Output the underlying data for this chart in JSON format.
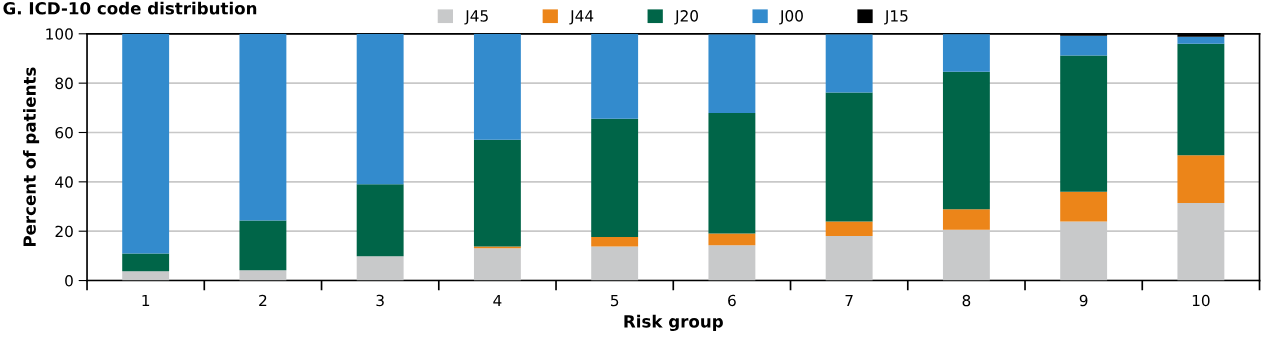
{
  "chart_data": {
    "type": "bar",
    "stacked": true,
    "title": "G. ICD-10 code distribution",
    "xlabel": "Risk group",
    "ylabel": "Percent of patients",
    "categories": [
      "1",
      "2",
      "3",
      "4",
      "5",
      "6",
      "7",
      "8",
      "9",
      "10"
    ],
    "series": [
      {
        "name": "J45",
        "color": "#c8c9ca",
        "values": [
          3.8,
          4.2,
          9.8,
          13.1,
          13.8,
          14.3,
          18.1,
          20.6,
          23.9,
          31.4
        ]
      },
      {
        "name": "J44",
        "color": "#ec8519",
        "values": [
          0,
          0,
          0,
          0.7,
          3.8,
          4.8,
          5.8,
          8.3,
          12.1,
          19.4
        ]
      },
      {
        "name": "J20",
        "color": "#006548",
        "values": [
          7.2,
          20.1,
          29.2,
          43.3,
          48.0,
          48.8,
          52.3,
          55.7,
          55.2,
          45.2
        ]
      },
      {
        "name": "J00",
        "color": "#338bcd",
        "values": [
          89.0,
          75.7,
          61.0,
          42.9,
          34.4,
          31.8,
          23.5,
          15.2,
          8.0,
          2.8
        ]
      },
      {
        "name": "J15",
        "color": "#000000",
        "values": [
          0,
          0,
          0,
          0,
          0,
          null,
          null,
          null,
          0.8,
          1.2
        ]
      }
    ],
    "ylim": [
      0,
      100
    ],
    "yticks": [
      0,
      20,
      40,
      60,
      80,
      100
    ],
    "grid": "y",
    "legend": "top"
  }
}
